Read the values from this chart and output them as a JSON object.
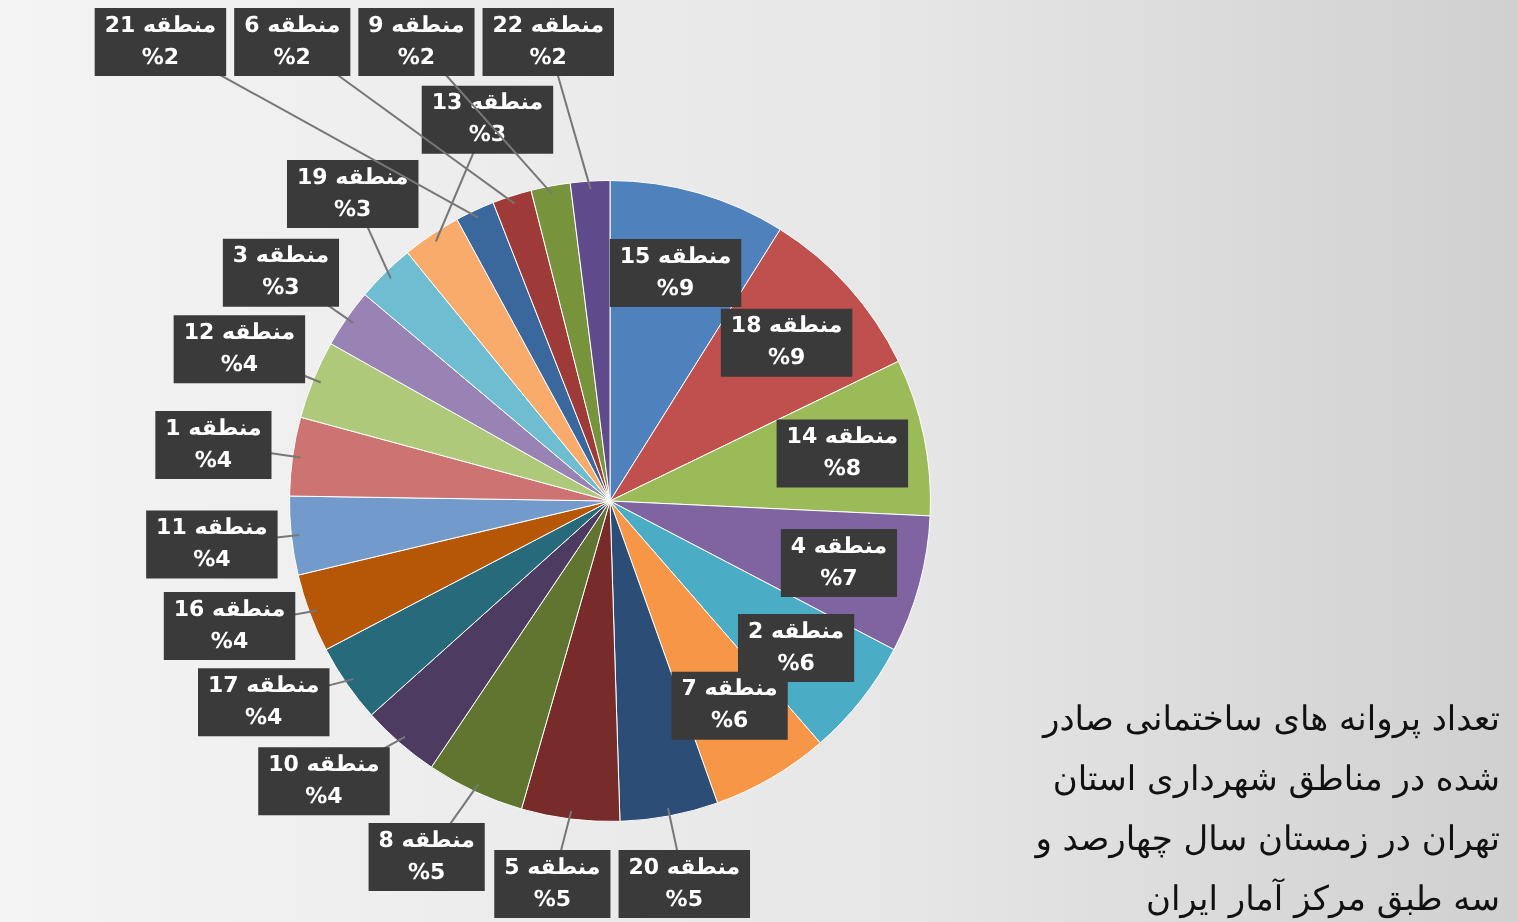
{
  "chart_data": {
    "type": "pie",
    "title": "تعداد پروانه های ساختمانی صادر شده در مناطق شهرداری استان تهران در زمستان سال چهارصد و سه طبق مرکز آمار ایران",
    "categories": [
      "منطقه 15",
      "منطقه 18",
      "منطقه 14",
      "منطقه 4",
      "منطقه 2",
      "منطقه 7",
      "منطقه 20",
      "منطقه 5",
      "منطقه 8",
      "منطقه 10",
      "منطقه 17",
      "منطقه 16",
      "منطقه 11",
      "منطقه 1",
      "منطقه 12",
      "منطقه 3",
      "منطقه 19",
      "منطقه 13",
      "منطقه 21",
      "منطقه 6",
      "منطقه 9",
      "منطقه 22"
    ],
    "values": [
      9,
      9,
      8,
      7,
      6,
      6,
      5,
      5,
      5,
      4,
      4,
      4,
      4,
      4,
      4,
      3,
      3,
      3,
      2,
      2,
      2,
      2
    ],
    "value_labels": [
      "%9",
      "%9",
      "%8",
      "%7",
      "%6",
      "%6",
      "%5",
      "%5",
      "%5",
      "%4",
      "%4",
      "%4",
      "%4",
      "%4",
      "%4",
      "%3",
      "%3",
      "%3",
      "%2",
      "%2",
      "%2",
      "%2"
    ],
    "colors": [
      "#4f81bd",
      "#c0504d",
      "#9bbb59",
      "#8064a2",
      "#4bacc6",
      "#f79646",
      "#2c4d75",
      "#772c2a",
      "#5f7530",
      "#4d3b62",
      "#276a7c",
      "#b65708",
      "#729aca",
      "#cd7371",
      "#afc97a",
      "#9983b5",
      "#6fbdd1",
      "#f9ab6b",
      "#3a679c",
      "#9e3b38",
      "#77933c",
      "#5f4b8b"
    ],
    "legend": false
  }
}
